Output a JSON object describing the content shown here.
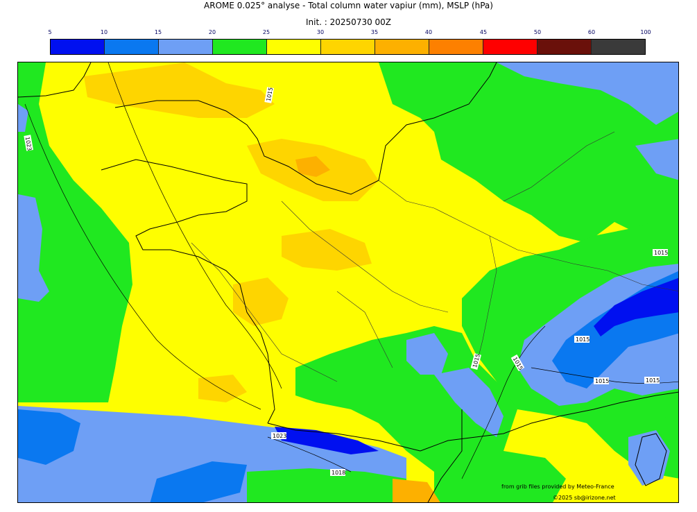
{
  "header": {
    "title": "AROME 0.025° analyse - Total column water vapiur (mm), MSLP (hPa)",
    "init": "Init. : 20250730 00Z"
  },
  "colorbar": {
    "ticks": [
      "5",
      "10",
      "15",
      "20",
      "25",
      "30",
      "35",
      "40",
      "45",
      "50",
      "60",
      "100"
    ],
    "colors": [
      "#0010f0",
      "#0a78f0",
      "#6e9ff5",
      "#20e820",
      "#fefe00",
      "#fed500",
      "#fdb000",
      "#fd8000",
      "#fe0000",
      "#6a100a",
      "#3a3a3a"
    ]
  },
  "map": {
    "isobar_labels": [
      "1015",
      "1023",
      "1015",
      "1015",
      "1015",
      "1015",
      "1015",
      "1015",
      "1023",
      "1018"
    ]
  },
  "credits": {
    "source": "from grib files provided by Meteo-France",
    "copyright": "©2025 sb@irizone.net"
  }
}
